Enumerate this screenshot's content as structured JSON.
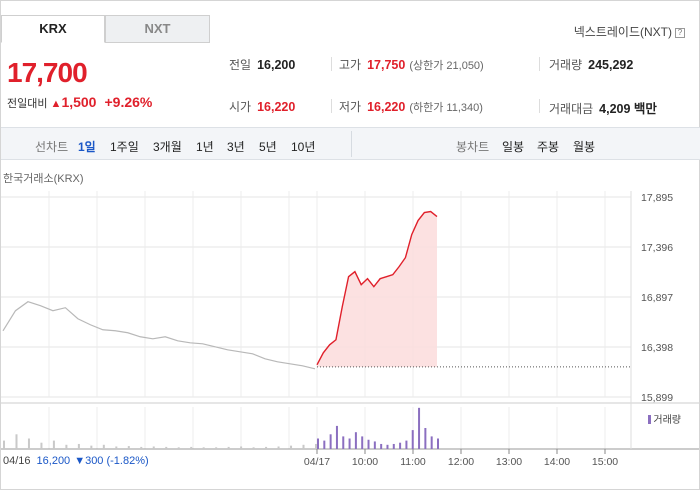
{
  "tabs": [
    {
      "label": "KRX",
      "active": true
    },
    {
      "label": "NXT",
      "active": false
    }
  ],
  "nxt_link": {
    "label": "넥스트레이드(NXT)",
    "help_icon": "?"
  },
  "price": {
    "current": "17,700",
    "change_label": "전일대비",
    "change_amount": "1,500",
    "change_percent": "+9.26%",
    "direction": "up"
  },
  "stats": {
    "prev_close": {
      "label": "전일",
      "value": "16,200"
    },
    "open": {
      "label": "시가",
      "value": "16,220"
    },
    "high": {
      "label": "고가",
      "value": "17,750",
      "extra": "(상한가 21,050)"
    },
    "low": {
      "label": "저가",
      "value": "16,220",
      "extra": "(하한가 11,340)"
    },
    "volume": {
      "label": "거래량",
      "value": "245,292"
    },
    "amount": {
      "label": "거래대금",
      "value": "4,209 백만"
    }
  },
  "period_bar": {
    "line_chart_label": "선차트",
    "line_periods": [
      "1일",
      "1주일",
      "3개월",
      "1년",
      "3년",
      "5년",
      "10년"
    ],
    "active_period": "1일",
    "candle_chart_label": "봉차트",
    "candle_periods": [
      "일봉",
      "주봉",
      "월봉"
    ]
  },
  "exchange_label": "한국거래소(KRX)",
  "volume_legend": "거래량",
  "bottom_info": {
    "date": "04/16",
    "price": "16,200",
    "change": "▼300 (-1.82%)"
  },
  "colors": {
    "up": "#e0202b",
    "down": "#1a57c7",
    "volume": "#8b6fc0",
    "prev_line": "#b8b8b8"
  },
  "chart_data": {
    "type": "line",
    "y_ticks": [
      "17,895",
      "17,396",
      "16,897",
      "16,398",
      "15,899"
    ],
    "ylim": [
      15899,
      17895
    ],
    "x_ticks": [
      "04/17",
      "10:00",
      "11:00",
      "12:00",
      "13:00",
      "14:00",
      "15:00"
    ],
    "reference_price": 16200,
    "series": [
      {
        "name": "04/16",
        "values": [
          16560,
          16760,
          16850,
          16810,
          16760,
          16790,
          16680,
          16620,
          16570,
          16560,
          16540,
          16500,
          16480,
          16500,
          16460,
          16440,
          16430,
          16400,
          16370,
          16350,
          16330,
          16280,
          16250,
          16230,
          16210,
          16180
        ]
      },
      {
        "name": "04/17",
        "values": [
          16220,
          16340,
          16420,
          16470,
          16800,
          17100,
          17150,
          17020,
          17080,
          17000,
          17080,
          17100,
          17120,
          17200,
          17290,
          17520,
          17660,
          17740,
          17750,
          17700
        ]
      }
    ],
    "volume_series": [
      {
        "name": "04/16",
        "values": [
          0.2,
          0.35,
          0.25,
          0.15,
          0.2,
          0.1,
          0.12,
          0.08,
          0.1,
          0.06,
          0.07,
          0.05,
          0.06,
          0.05,
          0.04,
          0.05,
          0.04,
          0.04,
          0.05,
          0.06,
          0.04,
          0.05,
          0.06,
          0.08,
          0.1,
          0.12
        ]
      },
      {
        "name": "04/17",
        "values": [
          0.25,
          0.2,
          0.35,
          0.55,
          0.3,
          0.25,
          0.4,
          0.3,
          0.22,
          0.18,
          0.12,
          0.1,
          0.12,
          0.15,
          0.2,
          0.45,
          0.98,
          0.5,
          0.3,
          0.25
        ]
      }
    ]
  }
}
